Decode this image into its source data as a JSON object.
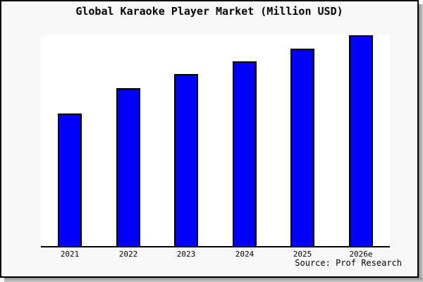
{
  "chart_data": {
    "type": "bar",
    "title": "Global Karaoke Player Market (Million USD)",
    "xlabel": "",
    "ylabel": "",
    "categories": [
      "2021",
      "2022",
      "2023",
      "2024",
      "2025",
      "2026e"
    ],
    "values": [
      62.7,
      74.8,
      81.2,
      87.4,
      93.3,
      99.7
    ],
    "ylim": [
      0,
      100
    ],
    "grid": false,
    "legend": false,
    "y_axis_labels_shown": false,
    "note": "No y-axis ticks or value labels are shown in the image; values are estimated relative bar heights as percent of plot height.",
    "bar_color": "#0000ff",
    "bar_border_color": "#000000"
  },
  "footer": {
    "source_text": "Source: Prof Research"
  },
  "colors": {
    "background": "#f8f8f8",
    "plot_background": "#ffffff",
    "frame_border": "#000000",
    "shadow": "#8c8c8c",
    "text": "#000000"
  }
}
